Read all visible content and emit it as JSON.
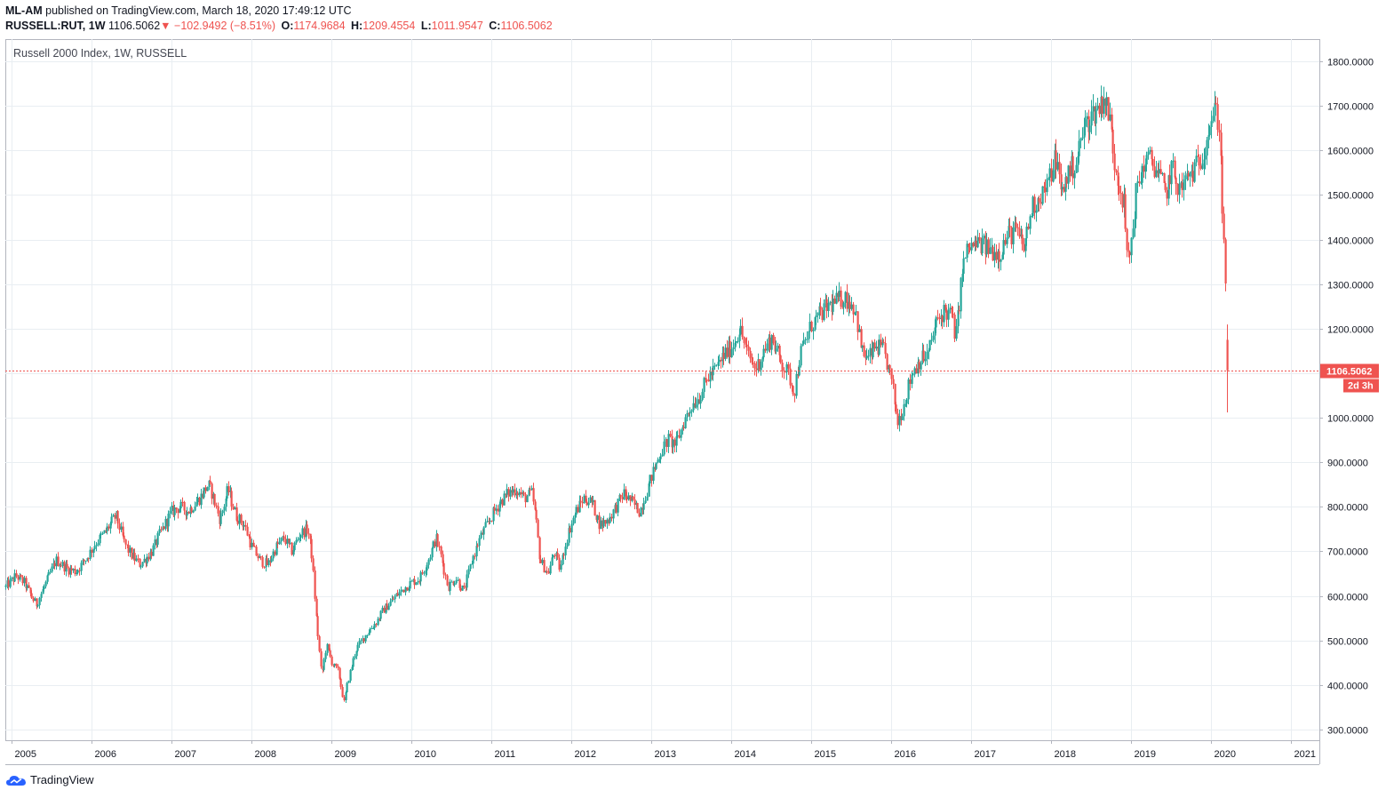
{
  "header": {
    "publisher": "ML-AM",
    "published_text": " published on TradingView.com, March 18, 2020 17:49:12 UTC",
    "symbol": "RUSSELL:RUT, 1W",
    "price": "1106.5062",
    "change": "−102.9492 (−8.51%)",
    "o_label": "O:",
    "o_value": "1174.9684",
    "h_label": "H:",
    "h_value": "1209.4554",
    "l_label": "L:",
    "l_value": "1011.9547",
    "c_label": "C:",
    "c_value": "1106.5062"
  },
  "legend_title": "Russell 2000 Index, 1W, RUSSELL",
  "price_tag": "1106.5062",
  "countdown_tag": "2d 3h",
  "footer": {
    "brand": "TradingView"
  },
  "colors": {
    "up": "#26a69a",
    "down": "#ef5350",
    "grid": "#e9eef2",
    "axis": "#b2b5be",
    "text": "#131722"
  },
  "chart_data": {
    "type": "candlestick",
    "title": "Russell 2000 Index, 1W, RUSSELL",
    "x_tick_labels": [
      "2005",
      "2006",
      "2007",
      "2008",
      "2009",
      "2010",
      "2011",
      "2012",
      "2013",
      "2014",
      "2015",
      "2016",
      "2017",
      "2018",
      "2019",
      "2020",
      "2021"
    ],
    "y_tick_labels": [
      "300.0000",
      "400.0000",
      "500.0000",
      "600.0000",
      "700.0000",
      "800.0000",
      "900.0000",
      "1000.0000",
      "1100.0000",
      "1200.0000",
      "1300.0000",
      "1400.0000",
      "1500.0000",
      "1600.0000",
      "1700.0000",
      "1800.0000"
    ],
    "y_ticks": [
      300,
      400,
      500,
      600,
      700,
      800,
      900,
      1000,
      1100,
      1200,
      1300,
      1400,
      1500,
      1600,
      1700,
      1800
    ],
    "ylim": [
      276,
      1850
    ],
    "xlim": [
      2004.92,
      2021.35
    ],
    "last_price": 1106.5062,
    "grid": true,
    "series": [
      {
        "close_path": [
          [
            2004.92,
            620
          ],
          [
            2005.05,
            645
          ],
          [
            2005.15,
            630
          ],
          [
            2005.3,
            580
          ],
          [
            2005.45,
            640
          ],
          [
            2005.55,
            680
          ],
          [
            2005.7,
            660
          ],
          [
            2005.8,
            655
          ],
          [
            2005.95,
            690
          ],
          [
            2006.05,
            720
          ],
          [
            2006.15,
            740
          ],
          [
            2006.3,
            780
          ],
          [
            2006.4,
            720
          ],
          [
            2006.5,
            690
          ],
          [
            2006.6,
            670
          ],
          [
            2006.75,
            700
          ],
          [
            2006.85,
            740
          ],
          [
            2007.0,
            790
          ],
          [
            2007.1,
            800
          ],
          [
            2007.2,
            790
          ],
          [
            2007.35,
            820
          ],
          [
            2007.45,
            850
          ],
          [
            2007.5,
            830
          ],
          [
            2007.6,
            770
          ],
          [
            2007.7,
            840
          ],
          [
            2007.8,
            780
          ],
          [
            2007.9,
            760
          ],
          [
            2008.0,
            710
          ],
          [
            2008.1,
            680
          ],
          [
            2008.2,
            670
          ],
          [
            2008.3,
            710
          ],
          [
            2008.4,
            730
          ],
          [
            2008.5,
            700
          ],
          [
            2008.6,
            740
          ],
          [
            2008.7,
            750
          ],
          [
            2008.75,
            690
          ],
          [
            2008.8,
            560
          ],
          [
            2008.87,
            420
          ],
          [
            2008.93,
            490
          ],
          [
            2009.0,
            450
          ],
          [
            2009.08,
            430
          ],
          [
            2009.15,
            360
          ],
          [
            2009.2,
            410
          ],
          [
            2009.3,
            480
          ],
          [
            2009.45,
            520
          ],
          [
            2009.55,
            540
          ],
          [
            2009.65,
            570
          ],
          [
            2009.8,
            600
          ],
          [
            2009.95,
            625
          ],
          [
            2010.1,
            640
          ],
          [
            2010.2,
            680
          ],
          [
            2010.3,
            730
          ],
          [
            2010.35,
            700
          ],
          [
            2010.45,
            620
          ],
          [
            2010.55,
            640
          ],
          [
            2010.65,
            610
          ],
          [
            2010.75,
            680
          ],
          [
            2010.85,
            730
          ],
          [
            2011.0,
            780
          ],
          [
            2011.1,
            810
          ],
          [
            2011.2,
            830
          ],
          [
            2011.3,
            840
          ],
          [
            2011.4,
            820
          ],
          [
            2011.5,
            830
          ],
          [
            2011.55,
            770
          ],
          [
            2011.6,
            680
          ],
          [
            2011.7,
            650
          ],
          [
            2011.78,
            700
          ],
          [
            2011.85,
            660
          ],
          [
            2011.95,
            740
          ],
          [
            2012.05,
            790
          ],
          [
            2012.15,
            820
          ],
          [
            2012.25,
            810
          ],
          [
            2012.35,
            760
          ],
          [
            2012.45,
            770
          ],
          [
            2012.55,
            800
          ],
          [
            2012.65,
            830
          ],
          [
            2012.75,
            810
          ],
          [
            2012.85,
            790
          ],
          [
            2013.0,
            870
          ],
          [
            2013.1,
            920
          ],
          [
            2013.2,
            950
          ],
          [
            2013.3,
            940
          ],
          [
            2013.4,
            990
          ],
          [
            2013.5,
            1030
          ],
          [
            2013.6,
            1050
          ],
          [
            2013.7,
            1090
          ],
          [
            2013.8,
            1110
          ],
          [
            2013.9,
            1140
          ],
          [
            2014.0,
            1160
          ],
          [
            2014.1,
            1200
          ],
          [
            2014.2,
            1140
          ],
          [
            2014.3,
            1110
          ],
          [
            2014.4,
            1150
          ],
          [
            2014.5,
            1180
          ],
          [
            2014.6,
            1130
          ],
          [
            2014.7,
            1100
          ],
          [
            2014.78,
            1060
          ],
          [
            2014.85,
            1140
          ],
          [
            2015.0,
            1210
          ],
          [
            2015.1,
            1230
          ],
          [
            2015.2,
            1250
          ],
          [
            2015.3,
            1260
          ],
          [
            2015.4,
            1270
          ],
          [
            2015.48,
            1260
          ],
          [
            2015.55,
            1240
          ],
          [
            2015.62,
            1150
          ],
          [
            2015.7,
            1130
          ],
          [
            2015.8,
            1160
          ],
          [
            2015.9,
            1150
          ],
          [
            2016.0,
            1080
          ],
          [
            2016.07,
            990
          ],
          [
            2016.15,
            1030
          ],
          [
            2016.25,
            1100
          ],
          [
            2016.35,
            1130
          ],
          [
            2016.45,
            1140
          ],
          [
            2016.55,
            1210
          ],
          [
            2016.65,
            1240
          ],
          [
            2016.75,
            1230
          ],
          [
            2016.8,
            1180
          ],
          [
            2016.88,
            1330
          ],
          [
            2016.95,
            1380
          ],
          [
            2017.1,
            1390
          ],
          [
            2017.2,
            1380
          ],
          [
            2017.35,
            1370
          ],
          [
            2017.45,
            1410
          ],
          [
            2017.55,
            1420
          ],
          [
            2017.65,
            1380
          ],
          [
            2017.75,
            1470
          ],
          [
            2017.85,
            1500
          ],
          [
            2017.95,
            1520
          ],
          [
            2018.05,
            1590
          ],
          [
            2018.12,
            1500
          ],
          [
            2018.2,
            1550
          ],
          [
            2018.3,
            1570
          ],
          [
            2018.4,
            1650
          ],
          [
            2018.5,
            1680
          ],
          [
            2018.6,
            1700
          ],
          [
            2018.65,
            1720
          ],
          [
            2018.72,
            1680
          ],
          [
            2018.78,
            1580
          ],
          [
            2018.85,
            1520
          ],
          [
            2018.9,
            1480
          ],
          [
            2018.95,
            1340
          ],
          [
            2019.0,
            1400
          ],
          [
            2019.05,
            1500
          ],
          [
            2019.15,
            1570
          ],
          [
            2019.25,
            1580
          ],
          [
            2019.35,
            1540
          ],
          [
            2019.42,
            1500
          ],
          [
            2019.5,
            1560
          ],
          [
            2019.6,
            1510
          ],
          [
            2019.7,
            1540
          ],
          [
            2019.8,
            1560
          ],
          [
            2019.9,
            1600
          ],
          [
            2019.97,
            1660
          ],
          [
            2020.05,
            1690
          ],
          [
            2020.1,
            1650
          ],
          [
            2020.13,
            1470
          ],
          [
            2020.15,
            1420
          ],
          [
            2020.18,
            1210
          ],
          [
            2020.2,
            1106.5
          ]
        ]
      }
    ]
  }
}
